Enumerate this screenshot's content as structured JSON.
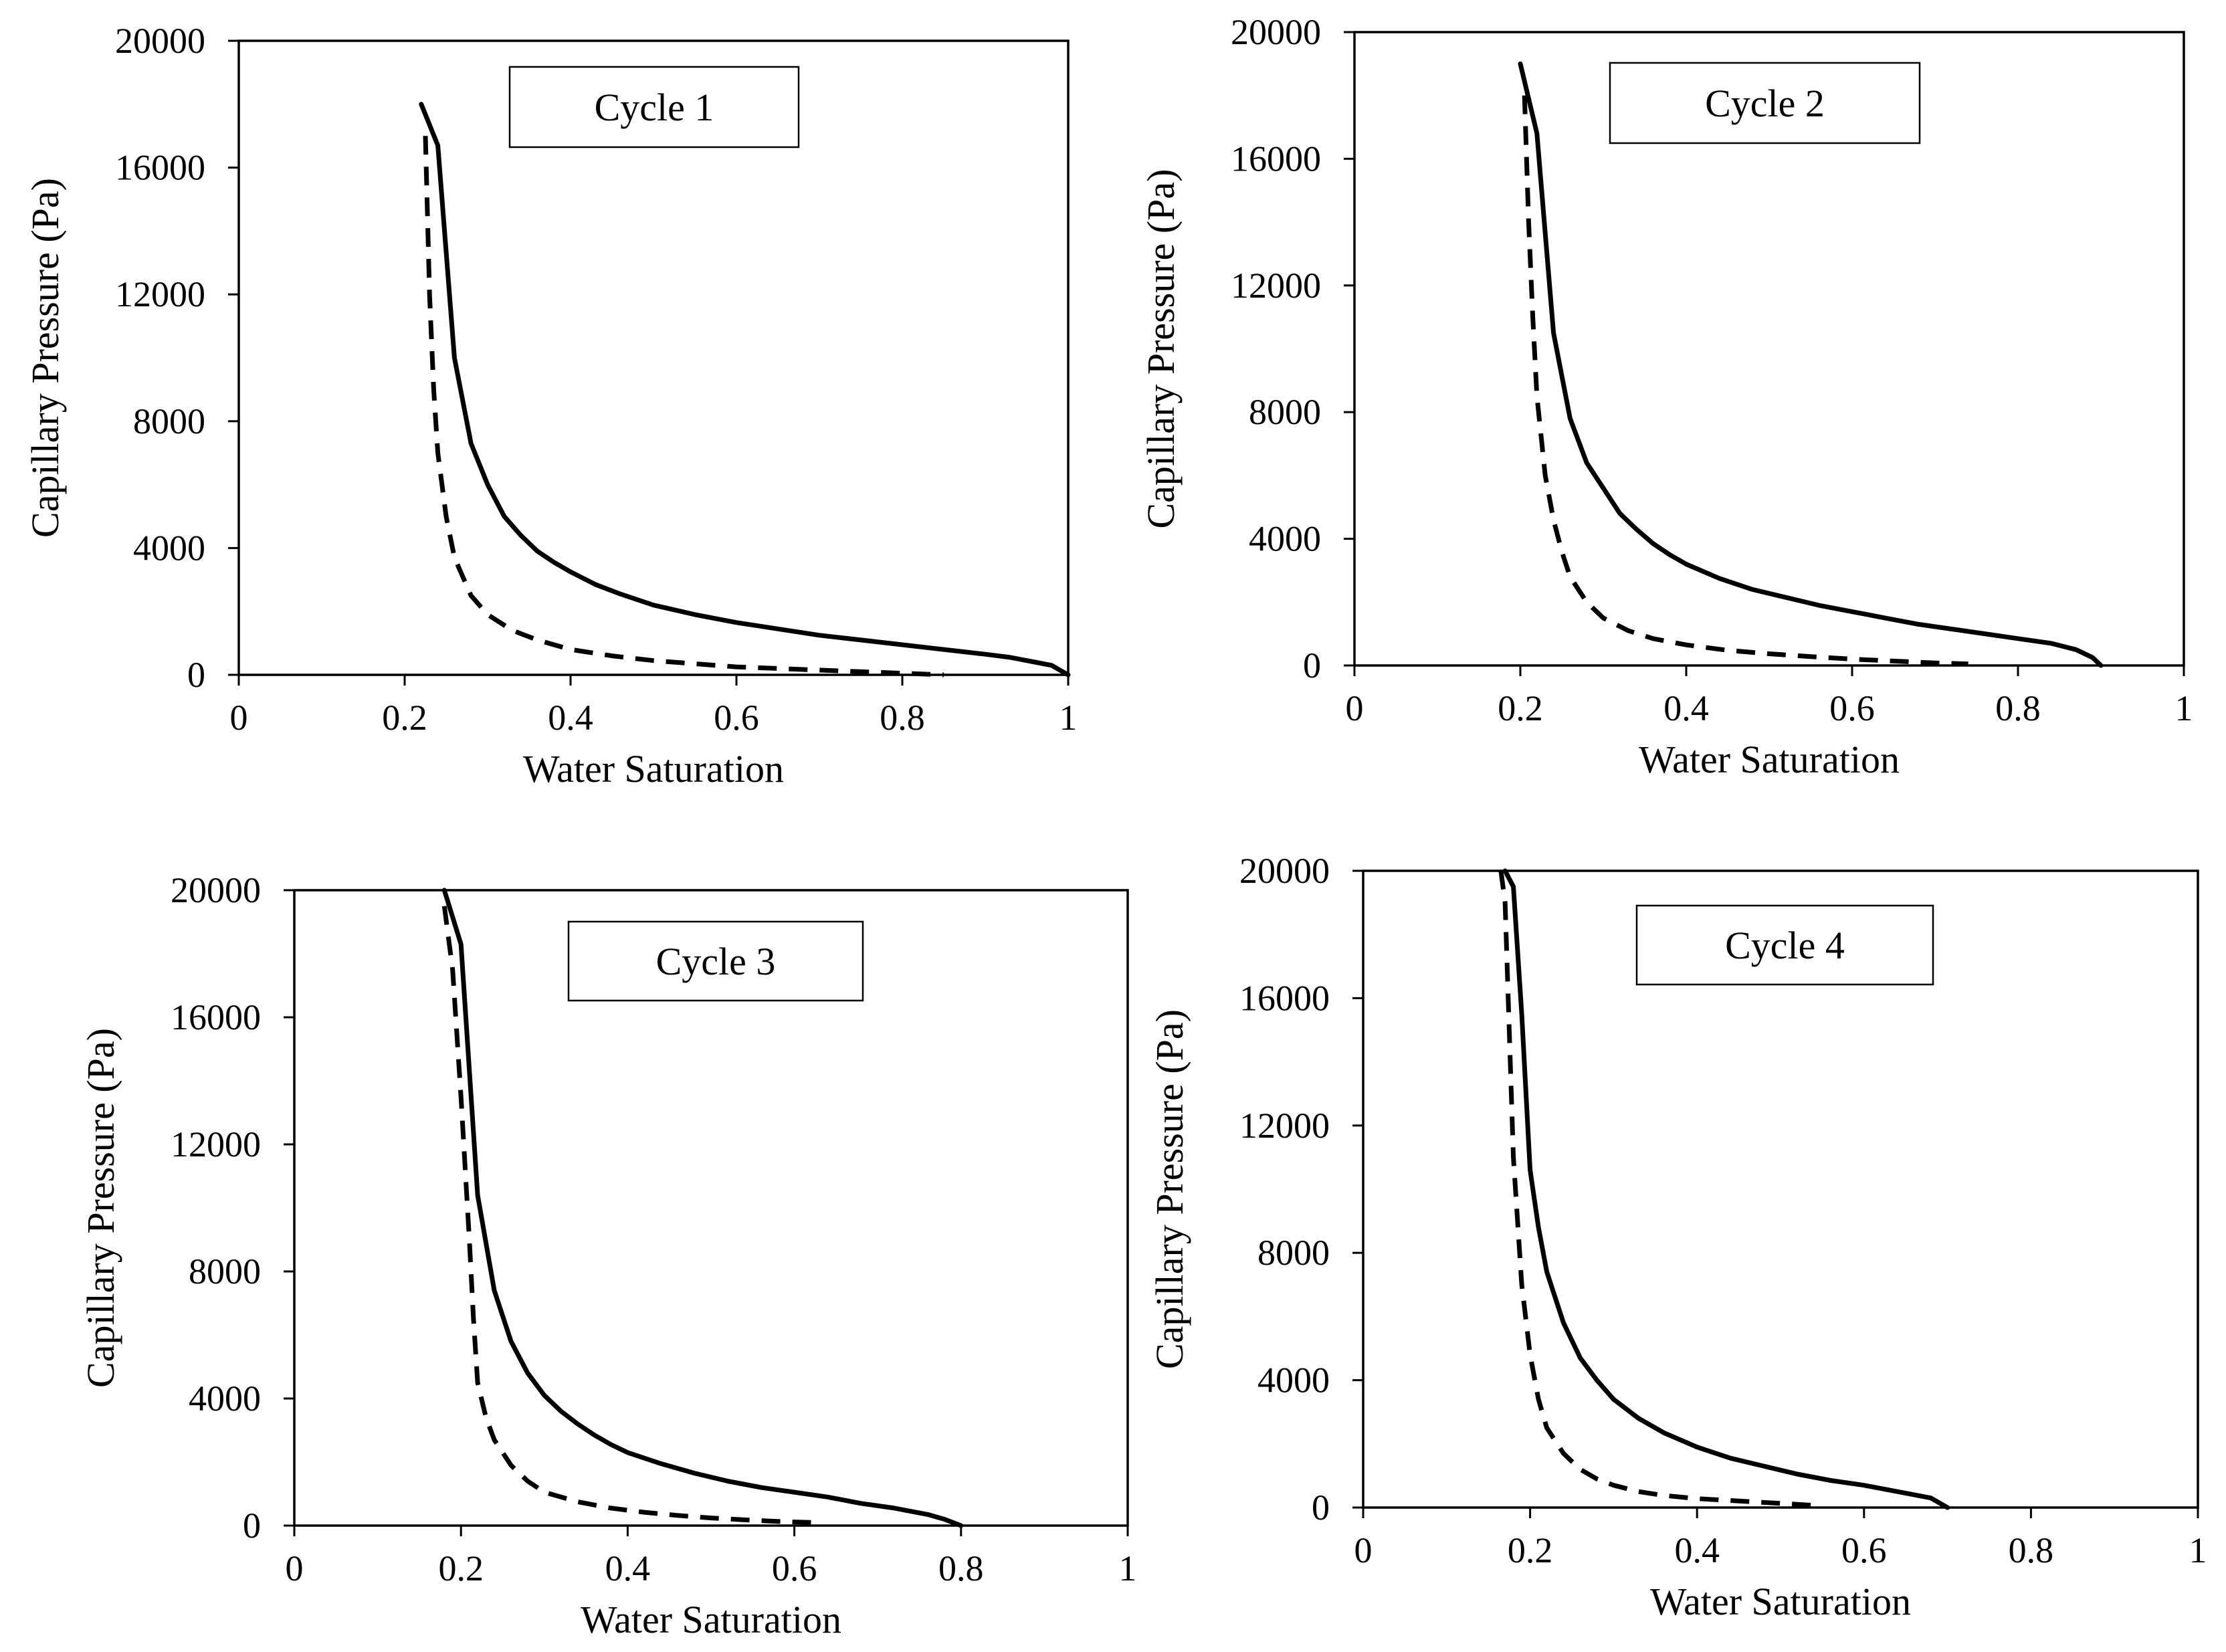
{
  "chart_data": [
    {
      "type": "line",
      "title": "Cycle 1",
      "xlabel": "Water Saturation",
      "ylabel": "Capillary  Pressure (Pa)",
      "xlim": [
        0,
        1
      ],
      "ylim": [
        0,
        20000
      ],
      "xticks": [
        "0",
        "0.2",
        "0.4",
        "0.6",
        "0.8",
        "1"
      ],
      "yticks": [
        "0",
        "4000",
        "8000",
        "12000",
        "16000",
        "20000"
      ],
      "grid": false,
      "series": [
        {
          "name": "solid",
          "style": "solid",
          "x": [
            0.22,
            0.24,
            0.26,
            0.28,
            0.3,
            0.32,
            0.34,
            0.36,
            0.38,
            0.4,
            0.43,
            0.46,
            0.5,
            0.55,
            0.6,
            0.65,
            0.7,
            0.75,
            0.8,
            0.85,
            0.9,
            0.93,
            0.96,
            0.98,
            1.0
          ],
          "y": [
            18000,
            16700,
            10000,
            7300,
            6000,
            5000,
            4400,
            3900,
            3550,
            3250,
            2850,
            2550,
            2200,
            1900,
            1650,
            1450,
            1250,
            1100,
            950,
            800,
            650,
            550,
            400,
            300,
            0
          ]
        },
        {
          "name": "dashed",
          "style": "dashed",
          "x": [
            0.225,
            0.23,
            0.235,
            0.24,
            0.25,
            0.26,
            0.28,
            0.3,
            0.33,
            0.36,
            0.4,
            0.45,
            0.5,
            0.55,
            0.6,
            0.65,
            0.7,
            0.75,
            0.8,
            0.85
          ],
          "y": [
            17000,
            12000,
            9000,
            7000,
            5000,
            3700,
            2500,
            1900,
            1400,
            1100,
            800,
            600,
            450,
            350,
            250,
            200,
            150,
            100,
            50,
            0
          ]
        }
      ]
    },
    {
      "type": "line",
      "title": "Cycle 2",
      "xlabel": "Water Saturation",
      "ylabel": "Capillary  Pressure (Pa)",
      "xlim": [
        0,
        1
      ],
      "ylim": [
        0,
        20000
      ],
      "xticks": [
        "0",
        "0.2",
        "0.4",
        "0.6",
        "0.8",
        "1"
      ],
      "yticks": [
        "0",
        "4000",
        "8000",
        "12000",
        "16000",
        "20000"
      ],
      "grid": false,
      "series": [
        {
          "name": "solid",
          "style": "solid",
          "x": [
            0.2,
            0.22,
            0.24,
            0.26,
            0.28,
            0.3,
            0.32,
            0.34,
            0.36,
            0.38,
            0.4,
            0.44,
            0.48,
            0.52,
            0.56,
            0.6,
            0.64,
            0.68,
            0.72,
            0.76,
            0.8,
            0.84,
            0.87,
            0.89,
            0.9
          ],
          "y": [
            19000,
            16800,
            10500,
            7800,
            6400,
            5600,
            4800,
            4300,
            3850,
            3500,
            3200,
            2750,
            2400,
            2150,
            1900,
            1700,
            1500,
            1300,
            1150,
            1000,
            850,
            700,
            500,
            250,
            0
          ]
        },
        {
          "name": "dashed",
          "style": "dashed",
          "x": [
            0.205,
            0.21,
            0.215,
            0.22,
            0.23,
            0.24,
            0.25,
            0.26,
            0.28,
            0.3,
            0.33,
            0.36,
            0.4,
            0.45,
            0.5,
            0.55,
            0.6,
            0.65,
            0.7,
            0.74
          ],
          "y": [
            18000,
            14000,
            11000,
            8500,
            6000,
            4600,
            3600,
            2800,
            2000,
            1500,
            1100,
            850,
            650,
            480,
            370,
            280,
            200,
            140,
            80,
            50
          ]
        }
      ]
    },
    {
      "type": "line",
      "title": "Cycle 3",
      "xlabel": "Water Saturation",
      "ylabel": "Capillary  Pressure (Pa)",
      "xlim": [
        0,
        1
      ],
      "ylim": [
        0,
        20000
      ],
      "xticks": [
        "0",
        "0.2",
        "0.4",
        "0.6",
        "0.8",
        "1"
      ],
      "yticks": [
        "0",
        "4000",
        "8000",
        "12000",
        "16000",
        "20000"
      ],
      "grid": false,
      "series": [
        {
          "name": "solid",
          "style": "solid",
          "x": [
            0.18,
            0.2,
            0.22,
            0.24,
            0.26,
            0.28,
            0.3,
            0.32,
            0.34,
            0.36,
            0.38,
            0.4,
            0.44,
            0.48,
            0.52,
            0.56,
            0.6,
            0.64,
            0.68,
            0.72,
            0.76,
            0.78,
            0.8
          ],
          "y": [
            20000,
            18300,
            10400,
            7400,
            5800,
            4800,
            4100,
            3600,
            3200,
            2850,
            2550,
            2300,
            1950,
            1650,
            1400,
            1200,
            1050,
            900,
            700,
            550,
            350,
            200,
            0
          ]
        },
        {
          "name": "dashed",
          "style": "dashed",
          "x": [
            0.18,
            0.19,
            0.2,
            0.21,
            0.215,
            0.22,
            0.23,
            0.24,
            0.26,
            0.28,
            0.3,
            0.34,
            0.38,
            0.42,
            0.46,
            0.5,
            0.54,
            0.58,
            0.62
          ],
          "y": [
            19500,
            17500,
            13500,
            9000,
            6500,
            4500,
            3400,
            2700,
            1900,
            1400,
            1050,
            750,
            550,
            420,
            320,
            240,
            180,
            130,
            100
          ]
        }
      ]
    },
    {
      "type": "line",
      "title": "Cycle 4",
      "xlabel": "Water Saturation",
      "ylabel": "Capillary  Pressure (Pa)",
      "xlim": [
        0,
        1
      ],
      "ylim": [
        0,
        20000
      ],
      "xticks": [
        "0",
        "0.2",
        "0.4",
        "0.6",
        "0.8",
        "1"
      ],
      "yticks": [
        "0",
        "4000",
        "8000",
        "12000",
        "16000",
        "20000"
      ],
      "grid": false,
      "series": [
        {
          "name": "solid",
          "style": "solid",
          "x": [
            0.17,
            0.18,
            0.19,
            0.2,
            0.21,
            0.22,
            0.24,
            0.26,
            0.28,
            0.3,
            0.33,
            0.36,
            0.4,
            0.44,
            0.48,
            0.52,
            0.56,
            0.6,
            0.64,
            0.68,
            0.7
          ],
          "y": [
            20000,
            19500,
            15500,
            10600,
            8800,
            7400,
            5800,
            4700,
            4000,
            3400,
            2800,
            2350,
            1900,
            1550,
            1300,
            1050,
            850,
            700,
            500,
            300,
            0
          ]
        },
        {
          "name": "dashed",
          "style": "dashed",
          "x": [
            0.165,
            0.17,
            0.175,
            0.18,
            0.19,
            0.2,
            0.21,
            0.22,
            0.24,
            0.26,
            0.28,
            0.3,
            0.33,
            0.36,
            0.4,
            0.44,
            0.48,
            0.52,
            0.55
          ],
          "y": [
            20000,
            19000,
            15000,
            11000,
            7000,
            4800,
            3400,
            2500,
            1700,
            1200,
            900,
            700,
            500,
            380,
            280,
            220,
            160,
            100,
            50
          ]
        }
      ]
    }
  ]
}
